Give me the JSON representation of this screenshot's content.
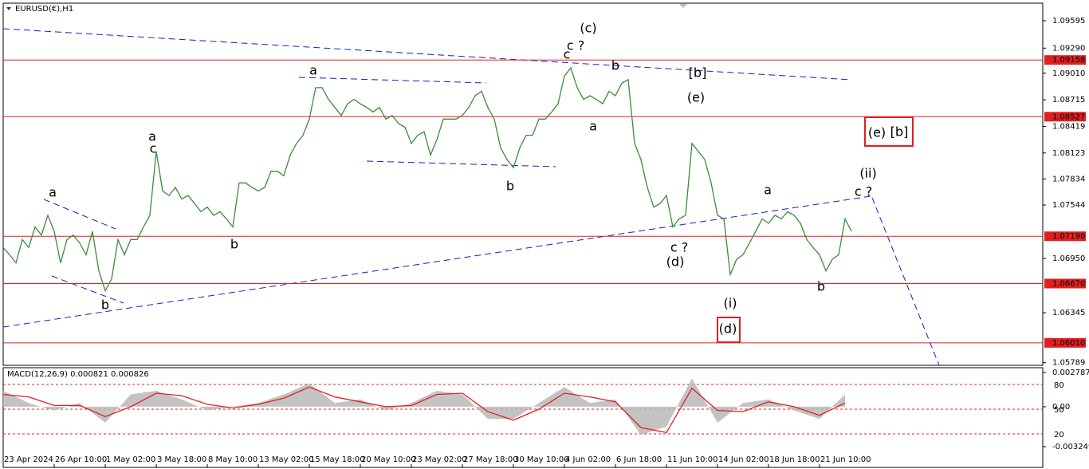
{
  "symbol_label": "EURUSD(€),H1",
  "annotations": [
    {
      "text": "(c)",
      "color": "#1a1acc"
    },
    {
      "text": "c ?",
      "color": "#e020e0"
    },
    {
      "text": "c",
      "color": "#000000"
    },
    {
      "text": "b",
      "color": "#e020e0"
    },
    {
      "text": "[b]",
      "color": "#2a8a2a"
    },
    {
      "text": "(e)",
      "color": "#1a1acc"
    },
    {
      "text": "a",
      "color": "#e020e0"
    },
    {
      "text": "a",
      "color": "#000000"
    },
    {
      "text": "a",
      "color": "#e020e0"
    },
    {
      "text": "c",
      "color": "#000000"
    },
    {
      "text": "a",
      "color": "#000000"
    },
    {
      "text": "b",
      "color": "#000000"
    },
    {
      "text": "b",
      "color": "#e020e0"
    },
    {
      "text": "b",
      "color": "#000000"
    },
    {
      "text": "c ?",
      "color": "#e020e0"
    },
    {
      "text": "(d)",
      "color": "#1a1acc"
    },
    {
      "text": "(i)",
      "color": "#1a1acc"
    },
    {
      "text": "(d)",
      "color": "#1a1acc"
    },
    {
      "text": "(e)",
      "color": "#1a1acc"
    },
    {
      "text": "[b]",
      "color": "#2a8a2a"
    },
    {
      "text": "(ii)",
      "color": "#1a1acc"
    },
    {
      "text": "c ?",
      "color": "#e020e0"
    },
    {
      "text": "a",
      "color": "#e020e0"
    },
    {
      "text": "b",
      "color": "#e020e0"
    }
  ],
  "chart_data": [
    {
      "type": "line",
      "color": "#3a8c3a",
      "x": [
        0,
        1,
        2,
        3,
        4,
        5,
        6,
        7,
        8,
        9,
        10,
        11,
        12,
        13,
        14,
        15,
        16,
        17,
        18,
        19,
        20,
        21,
        22,
        23,
        24,
        25,
        26,
        27,
        28,
        29,
        30,
        31,
        32,
        33,
        34,
        35,
        36,
        37,
        38,
        39,
        40,
        41,
        42,
        43,
        44,
        45,
        46,
        47,
        48,
        49,
        50,
        51,
        52,
        53,
        54,
        55,
        56,
        57,
        58,
        59,
        60,
        61,
        62,
        63,
        64,
        65,
        66,
        67,
        68,
        69,
        70,
        71,
        72,
        73,
        74,
        75,
        76,
        77,
        78,
        79,
        80,
        81,
        82,
        83,
        84,
        85,
        86,
        87,
        88,
        89,
        90,
        91,
        92,
        93,
        94,
        95,
        96,
        97,
        98,
        99,
        100,
        101,
        102,
        103,
        104,
        105,
        106,
        107,
        108,
        109,
        110,
        111,
        112,
        113,
        114,
        115,
        116,
        117,
        118,
        119,
        120,
        121,
        122,
        123,
        124,
        125,
        126,
        127,
        128,
        129,
        130,
        131,
        132,
        133
      ],
      "values": [
        1.0707,
        1.0699,
        1.069,
        1.0716,
        1.0707,
        1.073,
        1.0721,
        1.0743,
        1.0725,
        1.069,
        1.0716,
        1.0721,
        1.0712,
        1.0699,
        1.0725,
        1.0681,
        1.0659,
        1.0672,
        1.0716,
        1.0699,
        1.0716,
        1.0716,
        1.073,
        1.0743,
        1.0814,
        1.077,
        1.0765,
        1.0774,
        1.0761,
        1.0765,
        1.0756,
        1.0747,
        1.0752,
        1.0743,
        1.0747,
        1.0739,
        1.073,
        1.0779,
        1.0779,
        1.0774,
        1.077,
        1.0774,
        1.0792,
        1.0792,
        1.0787,
        1.081,
        1.0823,
        1.0832,
        1.085,
        1.0885,
        1.0885,
        1.0872,
        1.0863,
        1.0854,
        1.0867,
        1.0872,
        1.0867,
        1.0863,
        1.0858,
        1.0863,
        1.085,
        1.0854,
        1.0845,
        1.0841,
        1.0823,
        1.0832,
        1.0836,
        1.081,
        1.0827,
        1.085,
        1.085,
        1.085,
        1.0854,
        1.0863,
        1.0876,
        1.0881,
        1.0863,
        1.085,
        1.0818,
        1.0805,
        1.0796,
        1.0818,
        1.0832,
        1.0832,
        1.085,
        1.085,
        1.0858,
        1.0867,
        1.0898,
        1.0907,
        1.0885,
        1.0872,
        1.0876,
        1.0872,
        1.0867,
        1.0881,
        1.0876,
        1.089,
        1.0894,
        1.0823,
        1.0805,
        1.0774,
        1.0752,
        1.0756,
        1.0765,
        1.073,
        1.0739,
        1.0743,
        1.0823,
        1.0814,
        1.0805,
        1.0779,
        1.0743,
        1.0739,
        1.0677,
        1.0694,
        1.0699,
        1.0712,
        1.0725,
        1.0739,
        1.0734,
        1.0743,
        1.0739,
        1.0747,
        1.0743,
        1.0734,
        1.0716,
        1.0707,
        1.0699,
        1.0681,
        1.0694,
        1.0699,
        1.0739,
        1.0725
      ],
      "xlim": [
        0,
        163
      ],
      "xticks": [
        {
          "value": 0,
          "label": "23 Apr 2024"
        },
        {
          "value": 8,
          "label": "26 Apr 10:00"
        },
        {
          "value": 16,
          "label": "1 May 02:00"
        },
        {
          "value": 24,
          "label": "3 May 18:00"
        },
        {
          "value": 32,
          "label": "8 May 10:00"
        },
        {
          "value": 40,
          "label": "13 May 02:00"
        },
        {
          "value": 48,
          "label": "15 May 18:00"
        },
        {
          "value": 56,
          "label": "20 May 10:00"
        },
        {
          "value": 64,
          "label": "23 May 02:00"
        },
        {
          "value": 72,
          "label": "27 May 18:00"
        },
        {
          "value": 80,
          "label": "30 May 10:00"
        },
        {
          "value": 88,
          "label": "4 Jun 02:00"
        },
        {
          "value": 96,
          "label": "6 Jun 18:00"
        },
        {
          "value": 104,
          "label": "11 Jun 10:00"
        },
        {
          "value": 112,
          "label": "14 Jun 02:00"
        },
        {
          "value": 120,
          "label": "18 Jun 18:00"
        },
        {
          "value": 128,
          "label": "21 Jun 10:00"
        }
      ],
      "ylim": [
        1.0576,
        1.0979
      ],
      "yticks": [
        1.09595,
        {
          "value": 1.0929,
          "label": "1.09290"
        },
        {
          "value": 1.0901,
          "label": "1.09010"
        },
        1.08715,
        1.08419,
        1.08123,
        1.07834,
        1.07544,
        {
          "value": 1.0695,
          "label": "1.06950"
        },
        1.06345,
        1.05789
      ],
      "levels": [
        1.09158,
        1.08527,
        1.07196,
        {
          "value": 1.0667,
          "label": "1.06670"
        },
        {
          "value": 1.0601,
          "label": "1.06010"
        }
      ],
      "level_color": "#e02020"
    },
    {
      "type": "macd",
      "title": "MACD(12,26,9) 0.000821 0.000826",
      "x": [
        0,
        4,
        8,
        12,
        16,
        20,
        24,
        28,
        32,
        36,
        40,
        44,
        48,
        52,
        56,
        60,
        64,
        68,
        72,
        76,
        80,
        84,
        88,
        92,
        96,
        100,
        104,
        108,
        112,
        116,
        120,
        124,
        128,
        132
      ],
      "series": [
        {
          "color": "#b8b8b8",
          "values": [
            0.0013,
            0.0003,
            -0.0003,
            0.0003,
            -0.0013,
            0.001,
            0.0013,
            0.0006,
            -0.0003,
            0,
            0.0003,
            0.001,
            0.0019,
            0.0003,
            0.0006,
            -0.0003,
            0.0003,
            0.0013,
            0.001,
            -0.001,
            -0.001,
            0.0003,
            0.0016,
            0.0003,
            0.0006,
            -0.0023,
            -0.0016,
            0.0023,
            -0.0013,
            0.0003,
            0.0006,
            -0.0003,
            -0.001,
            0.001
          ]
        },
        {
          "color": "#e02020",
          "values": [
            0.001,
            0.0008,
            0.0001,
            0.0001,
            -0.0008,
            0,
            0.0011,
            0.0009,
            0.0002,
            -0.0001,
            0.0002,
            0.0007,
            0.0016,
            0.0008,
            0.0004,
            0,
            0.0001,
            0.001,
            0.0011,
            -0.0004,
            -0.0011,
            -0.0002,
            0.0011,
            0.0008,
            0.0004,
            -0.0017,
            -0.0021,
            0.0015,
            -0.0003,
            -0.0004,
            0.0004,
            0,
            -0.0007,
            0.0003
          ]
        }
      ],
      "ylim": [
        -0.003249,
        0.002787
      ],
      "yticks": [
        0.002787,
        {
          "value": 0,
          "label": "0.00"
        },
        -0.003249
      ],
      "y2lim": [
        4.5,
        94.5
      ],
      "y2ticks": [
        80,
        50,
        20
      ],
      "level_color": "#e02020"
    }
  ]
}
